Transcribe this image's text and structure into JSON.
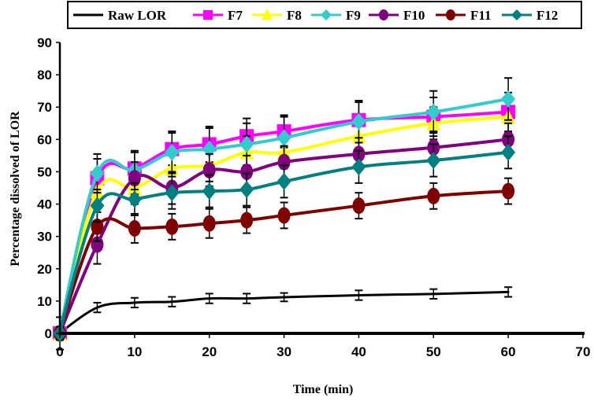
{
  "chart_data": {
    "type": "line",
    "title": "",
    "xlabel": "Time (min)",
    "ylabel": "Percentage dissolved of LOR",
    "xlim": [
      0,
      70
    ],
    "ylim": [
      0,
      90
    ],
    "xticks": [
      0,
      10,
      20,
      30,
      40,
      50,
      60,
      70
    ],
    "yticks": [
      0,
      10,
      20,
      30,
      40,
      50,
      60,
      70,
      80,
      90
    ],
    "grid": false,
    "legend_position": "top",
    "x": [
      0,
      5,
      10,
      15,
      20,
      25,
      30,
      40,
      50,
      60
    ],
    "series": [
      {
        "name": "Raw LOR",
        "color": "#000000",
        "marker": "none",
        "values": [
          0,
          8,
          9.5,
          9.8,
          10.8,
          10.8,
          11.2,
          11.8,
          12.2,
          12.8
        ],
        "errors": [
          5,
          1.5,
          1.5,
          1.5,
          1.5,
          1.5,
          1.3,
          1.5,
          1.5,
          1.5
        ]
      },
      {
        "name": "F7",
        "color": "#ff00ff",
        "marker": "square",
        "values": [
          0,
          48,
          51,
          57,
          58.5,
          61,
          62.5,
          66,
          67,
          68.5
        ],
        "errors": [
          2,
          6,
          5,
          5,
          5.5,
          5.5,
          5,
          5.5,
          6,
          6
        ]
      },
      {
        "name": "F8",
        "color": "#ffff00",
        "marker": "triangle",
        "values": [
          0,
          44,
          45,
          51,
          52,
          56,
          56,
          61,
          65,
          67
        ],
        "errors": [
          2,
          5,
          5,
          5,
          5,
          5,
          5,
          5,
          5,
          5
        ]
      },
      {
        "name": "F9",
        "color": "#33cccc",
        "marker": "diamond",
        "values": [
          0,
          49.5,
          50.5,
          56,
          57,
          58.5,
          60.5,
          65.5,
          68.5,
          72.5
        ],
        "errors": [
          2,
          6,
          6,
          6.5,
          6.5,
          6.5,
          6.5,
          6.5,
          6.5,
          6.5
        ]
      },
      {
        "name": "F10",
        "color": "#800080",
        "marker": "circle",
        "values": [
          0,
          27.5,
          48,
          45,
          50.5,
          50,
          53,
          55.5,
          57.5,
          60
        ],
        "errors": [
          2,
          6,
          5,
          5,
          5,
          5,
          5,
          5,
          5,
          5
        ]
      },
      {
        "name": "F11",
        "color": "#800000",
        "marker": "circle",
        "values": [
          0,
          33,
          32.5,
          33,
          34,
          35,
          36.5,
          39.5,
          42.5,
          44
        ],
        "errors": [
          2,
          4.5,
          4.5,
          4,
          4.5,
          4,
          4,
          4,
          4,
          4
        ]
      },
      {
        "name": "F12",
        "color": "#008080",
        "marker": "diamond",
        "values": [
          0,
          39.5,
          41.5,
          43.5,
          44,
          44.5,
          47,
          51.5,
          53.5,
          56
        ],
        "errors": [
          2,
          5,
          5,
          5,
          5,
          5,
          5,
          5,
          5,
          5
        ]
      }
    ]
  }
}
